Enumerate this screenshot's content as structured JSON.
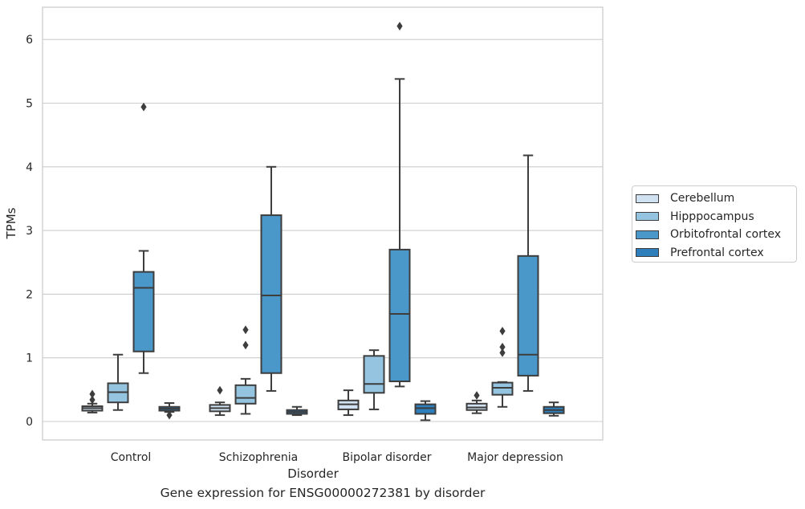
{
  "chart_data": {
    "type": "box",
    "xlabel": "Disorder",
    "ylabel": "TPMs",
    "caption": "Gene expression for ENSG00000272381 by disorder",
    "ylim": [
      -0.3,
      6.5
    ],
    "yticks": [
      0,
      1,
      2,
      3,
      4,
      5,
      6
    ],
    "grid": "horizontal",
    "legend_position": "right",
    "categories": [
      "Control",
      "Schizophrenia",
      "Bipolar disorder",
      "Major depression"
    ],
    "series": [
      {
        "name": "Cerebellum",
        "color": "#d0e1f2",
        "boxes": [
          {
            "whislo": 0.14,
            "q1": 0.17,
            "med": 0.21,
            "q3": 0.24,
            "whishi": 0.28,
            "fliers": [
              0.34,
              0.43
            ]
          },
          {
            "whislo": 0.1,
            "q1": 0.16,
            "med": 0.21,
            "q3": 0.26,
            "whishi": 0.3,
            "fliers": [
              0.49
            ]
          },
          {
            "whislo": 0.1,
            "q1": 0.19,
            "med": 0.27,
            "q3": 0.33,
            "whishi": 0.49,
            "fliers": []
          },
          {
            "whislo": 0.13,
            "q1": 0.18,
            "med": 0.22,
            "q3": 0.28,
            "whishi": 0.33,
            "fliers": [
              0.41
            ]
          }
        ]
      },
      {
        "name": "Hipppocampus",
        "color": "#94c4df",
        "boxes": [
          {
            "whislo": 0.18,
            "q1": 0.3,
            "med": 0.46,
            "q3": 0.6,
            "whishi": 1.05,
            "fliers": []
          },
          {
            "whislo": 0.12,
            "q1": 0.28,
            "med": 0.37,
            "q3": 0.57,
            "whishi": 0.67,
            "fliers": [
              1.2,
              1.44
            ]
          },
          {
            "whislo": 0.19,
            "q1": 0.45,
            "med": 0.59,
            "q3": 1.03,
            "whishi": 1.12,
            "fliers": []
          },
          {
            "whislo": 0.23,
            "q1": 0.42,
            "med": 0.53,
            "q3": 0.61,
            "whishi": 0.62,
            "fliers": [
              1.08,
              1.17,
              1.42
            ]
          }
        ]
      },
      {
        "name": "Orbitofrontal cortex",
        "color": "#4a98c9",
        "boxes": [
          {
            "whislo": 0.76,
            "q1": 1.1,
            "med": 2.1,
            "q3": 2.35,
            "whishi": 2.68,
            "fliers": [
              4.94
            ]
          },
          {
            "whislo": 0.48,
            "q1": 0.76,
            "med": 1.98,
            "q3": 3.24,
            "whishi": 4.0,
            "fliers": []
          },
          {
            "whislo": 0.55,
            "q1": 0.63,
            "med": 1.69,
            "q3": 2.7,
            "whishi": 5.38,
            "fliers": [
              6.21
            ]
          },
          {
            "whislo": 0.48,
            "q1": 0.72,
            "med": 1.05,
            "q3": 2.6,
            "whishi": 4.18,
            "fliers": []
          }
        ]
      },
      {
        "name": "Prefrontal cortex",
        "color": "#2e7ebc",
        "boxes": [
          {
            "whislo": 0.15,
            "q1": 0.17,
            "med": 0.2,
            "q3": 0.23,
            "whishi": 0.29,
            "fliers": [
              0.1
            ]
          },
          {
            "whislo": 0.1,
            "q1": 0.12,
            "med": 0.15,
            "q3": 0.18,
            "whishi": 0.23,
            "fliers": []
          },
          {
            "whislo": 0.02,
            "q1": 0.12,
            "med": 0.21,
            "q3": 0.27,
            "whishi": 0.32,
            "fliers": []
          },
          {
            "whislo": 0.09,
            "q1": 0.13,
            "med": 0.18,
            "q3": 0.23,
            "whishi": 0.3,
            "fliers": []
          }
        ]
      }
    ]
  }
}
